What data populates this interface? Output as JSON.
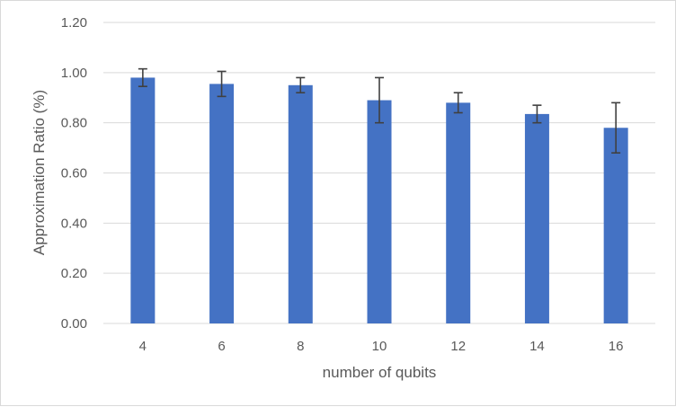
{
  "chart_data": {
    "type": "bar",
    "title": "",
    "categories": [
      "4",
      "6",
      "8",
      "10",
      "12",
      "14",
      "16"
    ],
    "series": [
      {
        "values": [
          0.98,
          0.955,
          0.95,
          0.89,
          0.88,
          0.835,
          0.78
        ],
        "error": [
          0.035,
          0.05,
          0.03,
          0.09,
          0.04,
          0.035,
          0.1
        ],
        "color": "#4472C4"
      }
    ],
    "xlabel": "number of qubits",
    "ylabel": "Approximation Ratio (%)",
    "ylim": [
      0,
      1.2
    ],
    "yticks": [
      "0.00",
      "0.20",
      "0.40",
      "0.60",
      "0.80",
      "1.00",
      "1.20"
    ],
    "grid": true,
    "legend": "none"
  },
  "colors": {
    "bar": "#4472C4",
    "grid": "#d9d9d9",
    "error_bar": "#404040",
    "text": "#595959"
  }
}
